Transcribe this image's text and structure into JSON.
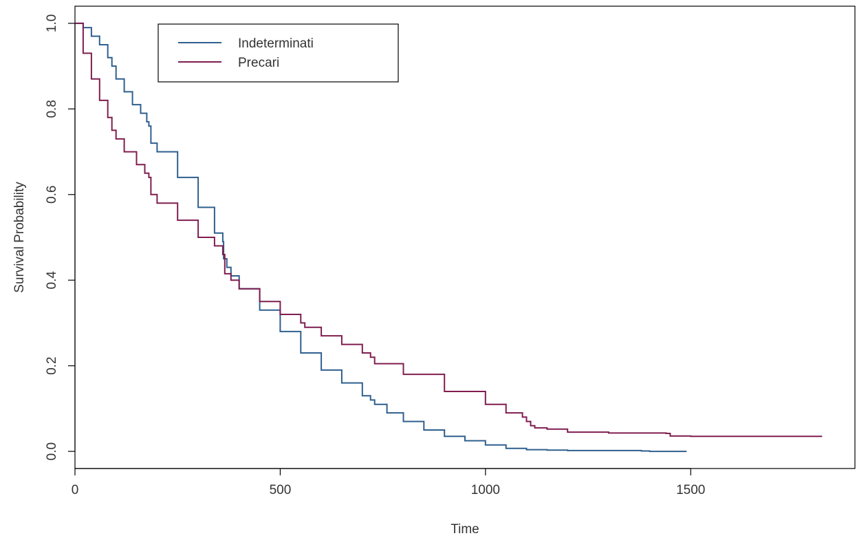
{
  "chart_data": {
    "type": "line",
    "title": "",
    "xlabel": "Time",
    "ylabel": "Survival Probability",
    "xlim": [
      0,
      1900
    ],
    "ylim": [
      -0.04,
      1.04
    ],
    "xticks": [
      0,
      500,
      1000,
      1500
    ],
    "xtick_labels": [
      "0",
      "500",
      "1000",
      "1500"
    ],
    "yticks": [
      0.0,
      0.2,
      0.4,
      0.6,
      0.8,
      1.0
    ],
    "ytick_labels": [
      "0.0",
      "0.2",
      "0.4",
      "0.6",
      "0.8",
      "1.0"
    ],
    "grid": false,
    "legend": {
      "placement": "top-left"
    },
    "series": [
      {
        "name": "Indeterminati",
        "color": "#2e5f8e",
        "step": true,
        "x": [
          0,
          10,
          20,
          40,
          60,
          80,
          90,
          100,
          120,
          140,
          160,
          175,
          180,
          185,
          200,
          250,
          300,
          340,
          360,
          362,
          370,
          380,
          400,
          450,
          500,
          550,
          600,
          650,
          700,
          720,
          730,
          760,
          800,
          850,
          900,
          950,
          1000,
          1050,
          1100,
          1150,
          1200,
          1300,
          1380,
          1400,
          1490
        ],
        "y": [
          1.0,
          1.0,
          0.99,
          0.97,
          0.95,
          0.92,
          0.9,
          0.87,
          0.84,
          0.81,
          0.79,
          0.77,
          0.76,
          0.72,
          0.7,
          0.64,
          0.57,
          0.51,
          0.49,
          0.45,
          0.43,
          0.41,
          0.38,
          0.33,
          0.28,
          0.23,
          0.19,
          0.16,
          0.13,
          0.12,
          0.11,
          0.09,
          0.07,
          0.05,
          0.035,
          0.025,
          0.015,
          0.007,
          0.004,
          0.003,
          0.002,
          0.002,
          0.001,
          0.0,
          0.0
        ]
      },
      {
        "name": "Precari",
        "color": "#7f1d4f",
        "step": true,
        "x": [
          0,
          20,
          40,
          60,
          80,
          90,
          100,
          120,
          150,
          170,
          180,
          185,
          200,
          250,
          300,
          340,
          360,
          365,
          380,
          400,
          450,
          500,
          550,
          560,
          600,
          650,
          700,
          720,
          730,
          800,
          900,
          1000,
          1050,
          1090,
          1100,
          1110,
          1120,
          1150,
          1200,
          1300,
          1440,
          1450,
          1500,
          1820
        ],
        "y": [
          1.0,
          0.93,
          0.87,
          0.82,
          0.78,
          0.75,
          0.73,
          0.7,
          0.67,
          0.65,
          0.64,
          0.6,
          0.58,
          0.54,
          0.5,
          0.48,
          0.46,
          0.415,
          0.4,
          0.38,
          0.35,
          0.32,
          0.3,
          0.29,
          0.27,
          0.25,
          0.23,
          0.22,
          0.205,
          0.18,
          0.14,
          0.11,
          0.09,
          0.08,
          0.07,
          0.06,
          0.055,
          0.052,
          0.045,
          0.043,
          0.042,
          0.036,
          0.035,
          0.035
        ]
      }
    ]
  }
}
